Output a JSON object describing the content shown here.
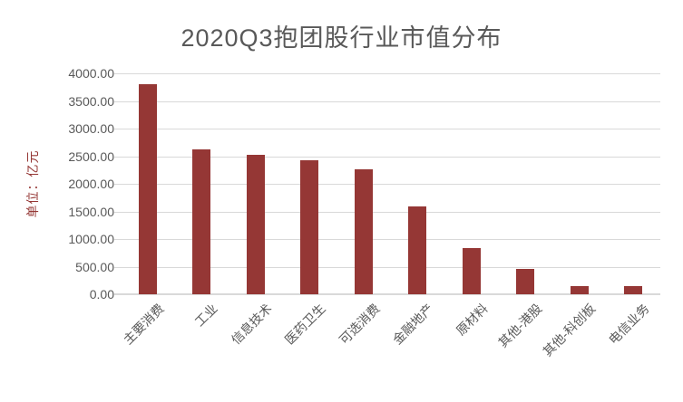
{
  "chart_data": {
    "type": "bar",
    "title": "2020Q3抱团股行业市值分布",
    "ylabel": "单位：亿元",
    "xlabel": "",
    "categories": [
      "主要消费",
      "工业",
      "信息技术",
      "医药卫生",
      "可选消费",
      "金融地产",
      "原材料",
      "其他-港股",
      "其他-科创板",
      "电信业务"
    ],
    "values": [
      3810,
      2620,
      2530,
      2420,
      2270,
      1590,
      840,
      460,
      140,
      140
    ],
    "ylim": [
      0,
      4000
    ],
    "ytick_step": 500,
    "ytick_decimals": 2,
    "grid": true,
    "legend": "none",
    "x_label_rotation_deg": 45,
    "colors": {
      "bar": "#953735",
      "gridline": "#D9D9D9",
      "axis_text": "#595959",
      "title_text": "#595959",
      "y_axis_title_text": "#953735",
      "background": "#FFFFFF"
    }
  }
}
